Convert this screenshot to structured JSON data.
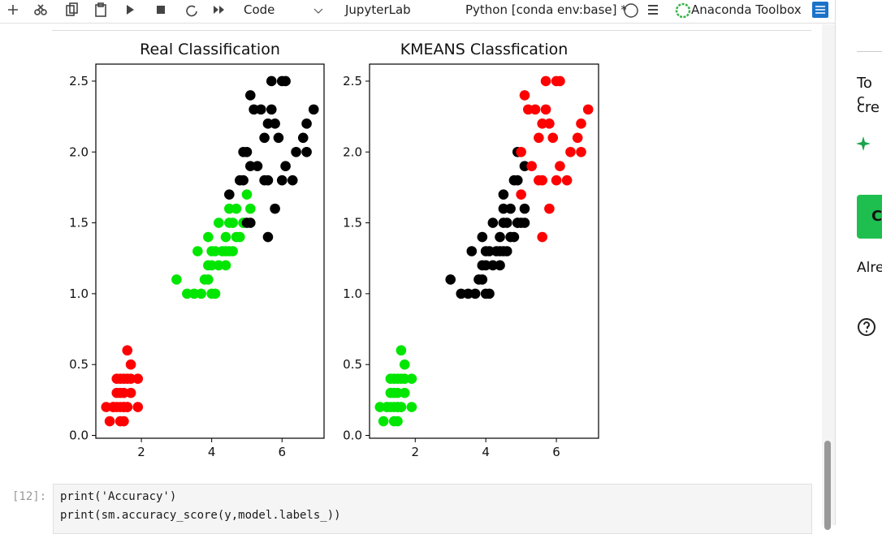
{
  "toolbar": {
    "cell_type": "Code",
    "lab_link": "JupyterLab",
    "kernel": "Python [conda env:base] *",
    "toolbox": "Anaconda Toolbox"
  },
  "chart_data": [
    {
      "type": "scatter",
      "title": "Real Classification",
      "xlim": [
        0.705,
        7.195
      ],
      "ylim": [
        -0.02,
        2.62
      ],
      "xticks": [
        2,
        4,
        6
      ],
      "yticks": [
        {
          "value": 0,
          "label": "0.0"
        },
        0.5,
        {
          "value": 1,
          "label": "1.0"
        },
        1.5,
        {
          "value": 2,
          "label": "2.0"
        },
        2.5
      ],
      "series": [
        {
          "color": "#ff0000",
          "x": [
            1.4,
            1.3,
            1.5,
            1.7,
            1.4,
            1.5,
            1.6,
            1.1,
            1.2,
            1.5,
            1.3,
            1.7,
            1.9,
            1.6,
            1.0,
            1.9,
            1.6,
            1.3,
            1.4,
            1.5,
            1.7,
            1.2,
            1.6,
            1.4,
            1.5
          ],
          "values": [
            0.2,
            0.2,
            0.2,
            0.4,
            0.3,
            0.1,
            0.2,
            0.1,
            0.2,
            0.4,
            0.4,
            0.3,
            0.2,
            0.4,
            0.2,
            0.4,
            0.6,
            0.3,
            0.1,
            0.3,
            0.5,
            0.2,
            0.2,
            0.4,
            0.2
          ]
        },
        {
          "color": "#00e600",
          "x": [
            4.7,
            4.5,
            4.9,
            4.0,
            4.6,
            4.5,
            4.7,
            3.3,
            4.6,
            3.9,
            3.5,
            4.2,
            4.0,
            3.6,
            4.4,
            4.1,
            3.9,
            4.3,
            4.8,
            5.0,
            3.8,
            3.7,
            3.9,
            4.5,
            4.4,
            4.1,
            4.0,
            4.4,
            3.0,
            4.2,
            5.1,
            4.9
          ],
          "values": [
            1.4,
            1.5,
            1.5,
            1.3,
            1.5,
            1.3,
            1.6,
            1.0,
            1.3,
            1.4,
            1.0,
            1.5,
            1.0,
            1.3,
            1.4,
            1.0,
            1.1,
            1.3,
            1.4,
            1.7,
            1.1,
            1.0,
            1.2,
            1.6,
            1.2,
            1.3,
            1.2,
            1.3,
            1.1,
            1.2,
            1.6,
            1.5
          ]
        },
        {
          "color": "#000000",
          "x": [
            6.0,
            5.1,
            5.9,
            5.6,
            5.8,
            6.6,
            4.5,
            6.3,
            6.1,
            5.3,
            5.5,
            5.0,
            5.1,
            6.7,
            6.9,
            5.0,
            5.7,
            4.9,
            6.7,
            4.9,
            6.0,
            4.8,
            5.8,
            6.1,
            6.4,
            5.6,
            5.1,
            5.6,
            5.4,
            5.2,
            5.7,
            5.5
          ],
          "values": [
            2.5,
            1.9,
            2.1,
            1.8,
            2.2,
            2.1,
            1.7,
            1.8,
            2.5,
            1.9,
            2.1,
            2.0,
            2.4,
            2.2,
            2.3,
            1.5,
            2.3,
            2.0,
            2.0,
            1.8,
            1.8,
            1.8,
            1.6,
            1.9,
            2.0,
            2.2,
            1.5,
            1.4,
            2.3,
            2.3,
            2.5,
            1.8
          ]
        }
      ]
    },
    {
      "type": "scatter",
      "title": "KMEANS Classfication",
      "xlim": [
        0.705,
        7.195
      ],
      "ylim": [
        -0.02,
        2.62
      ],
      "xticks": [
        2,
        4,
        6
      ],
      "yticks": [
        {
          "value": 0,
          "label": "0.0"
        },
        0.5,
        {
          "value": 1,
          "label": "1.0"
        },
        1.5,
        {
          "value": 2,
          "label": "2.0"
        },
        2.5
      ],
      "series": [
        {
          "color": "#00e600",
          "x": [
            1.4,
            1.3,
            1.5,
            1.7,
            1.4,
            1.5,
            1.6,
            1.1,
            1.2,
            1.5,
            1.3,
            1.7,
            1.9,
            1.6,
            1.0,
            1.9,
            1.6,
            1.3,
            1.4,
            1.5,
            1.7,
            1.2,
            1.6,
            1.4,
            1.5
          ],
          "values": [
            0.2,
            0.2,
            0.2,
            0.4,
            0.3,
            0.1,
            0.2,
            0.1,
            0.2,
            0.4,
            0.4,
            0.3,
            0.2,
            0.4,
            0.2,
            0.4,
            0.6,
            0.3,
            0.1,
            0.3,
            0.5,
            0.2,
            0.2,
            0.4,
            0.2
          ]
        },
        {
          "color": "#000000",
          "x": [
            4.7,
            4.5,
            4.9,
            4.0,
            4.6,
            4.5,
            4.7,
            3.3,
            4.6,
            3.9,
            3.5,
            4.2,
            4.0,
            3.6,
            4.4,
            4.1,
            3.9,
            4.3,
            4.8,
            3.8,
            3.7,
            3.9,
            4.5,
            4.4,
            4.1,
            4.0,
            4.4,
            3.0,
            4.2,
            5.1,
            4.9,
            4.5,
            5.0,
            4.9,
            4.9,
            4.8,
            5.1,
            5.1
          ],
          "values": [
            1.4,
            1.5,
            1.5,
            1.3,
            1.5,
            1.3,
            1.6,
            1.0,
            1.3,
            1.4,
            1.0,
            1.5,
            1.0,
            1.3,
            1.4,
            1.0,
            1.1,
            1.3,
            1.4,
            1.1,
            1.0,
            1.2,
            1.6,
            1.2,
            1.3,
            1.2,
            1.3,
            1.1,
            1.2,
            1.6,
            1.5,
            1.7,
            1.5,
            2.0,
            1.8,
            1.8,
            1.5,
            1.9
          ]
        },
        {
          "color": "#ff0000",
          "x": [
            6.0,
            5.9,
            5.6,
            5.8,
            6.6,
            6.3,
            6.1,
            5.3,
            5.5,
            5.0,
            5.1,
            6.7,
            6.9,
            5.7,
            6.7,
            6.0,
            5.8,
            6.1,
            6.4,
            5.6,
            5.6,
            5.4,
            5.2,
            5.7,
            5.5,
            5.0
          ],
          "values": [
            2.5,
            2.1,
            1.8,
            2.2,
            2.1,
            1.8,
            2.5,
            1.9,
            2.1,
            2.0,
            2.4,
            2.2,
            2.3,
            2.3,
            2.0,
            1.8,
            1.6,
            1.9,
            2.0,
            2.2,
            1.4,
            2.3,
            2.3,
            2.5,
            1.8,
            1.7
          ]
        }
      ]
    }
  ],
  "cell": {
    "prompt": "[12]:",
    "code": [
      "print('Accuracy')",
      "print(sm.accuracy_score(y,model.labels_))"
    ]
  },
  "side_panel": {
    "lines": [
      "To c",
      "cre"
    ],
    "button": "C",
    "footer": "Alre"
  }
}
